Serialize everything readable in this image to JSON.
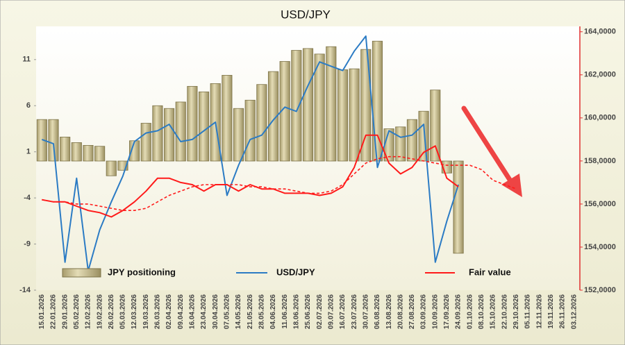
{
  "chart_data": {
    "type": "combo",
    "title": "USD/JPY",
    "categories": [
      "15.01.2026",
      "22.01.2026",
      "29.01.2026",
      "05.02.2026",
      "12.02.2026",
      "19.02.2026",
      "26.02.2026",
      "05.03.2026",
      "12.03.2026",
      "19.03.2026",
      "26.03.2026",
      "02.04.2026",
      "09.04.2026",
      "16.04.2026",
      "23.04.2026",
      "30.04.2026",
      "07.05.2026",
      "14.05.2026",
      "21.05.2026",
      "28.05.2026",
      "04.06.2026",
      "11.06.2026",
      "18.06.2026",
      "25.06.2026",
      "02.07.2026",
      "09.07.2026",
      "16.07.2026",
      "23.07.2026",
      "30.07.2026",
      "06.08.2026",
      "13.08.2026",
      "20.08.2026",
      "27.08.2026",
      "03.09.2026",
      "10.09.2026",
      "17.09.2026",
      "24.09.2026",
      "01.10.2026",
      "08.10.2026",
      "15.10.2026",
      "22.10.2026",
      "29.10.2026",
      "05.11.2026",
      "12.11.2026",
      "19.11.2026",
      "26.11.2026",
      "03.12.2026"
    ],
    "ylim": [
      -14,
      14.6
    ],
    "yticks": [
      -14,
      -9,
      -4,
      1,
      6,
      11
    ],
    "y2lim": [
      152000,
      164250
    ],
    "y2ticks": [
      {
        "value": 152000,
        "label": "152,0000"
      },
      {
        "value": 154000,
        "label": "154,0000"
      },
      {
        "value": 156000,
        "label": "156,0000"
      },
      {
        "value": 158000,
        "label": "158,0000"
      },
      {
        "value": 160000,
        "label": "160,0000"
      },
      {
        "value": 162000,
        "label": "162,0000"
      },
      {
        "value": 164000,
        "label": "164,0000"
      }
    ],
    "series": [
      {
        "name": "JPY positioning",
        "kind": "bar",
        "axis": "y",
        "color": "#c9bf92",
        "values": [
          4.5,
          4.5,
          2.6,
          2.0,
          1.7,
          1.6,
          -1.6,
          -1.0,
          2.2,
          4.1,
          6.0,
          5.7,
          6.4,
          8.1,
          7.5,
          8.4,
          9.3,
          5.7,
          6.6,
          8.3,
          9.7,
          10.8,
          12.0,
          12.2,
          11.6,
          12.4,
          9.9,
          10.0,
          12.1,
          13.0,
          3.5,
          3.7,
          4.5,
          5.4,
          7.7,
          -1.3,
          -10.0,
          null,
          null,
          null,
          null,
          null,
          null,
          null,
          null,
          null,
          null
        ]
      },
      {
        "name": "USD/JPY",
        "kind": "line",
        "axis": "y2",
        "color": "#2b7bc4",
        "values": [
          159000,
          158800,
          153300,
          157200,
          152900,
          154800,
          156100,
          157300,
          158900,
          159300,
          159400,
          159700,
          158900,
          159000,
          159400,
          159800,
          156400,
          157800,
          159000,
          159200,
          159900,
          160500,
          160300,
          161500,
          162600,
          162400,
          162200,
          163100,
          163800,
          157700,
          159400,
          159100,
          159200,
          159700,
          153300,
          155200,
          156900,
          null,
          null,
          null,
          null,
          null,
          null,
          null,
          null,
          null,
          null
        ]
      },
      {
        "name": "Fair value",
        "kind": "line",
        "axis": "y2",
        "color": "#ff1a1a",
        "values": [
          156200,
          156100,
          156100,
          155900,
          155700,
          155600,
          155400,
          155700,
          156100,
          156600,
          157200,
          157200,
          157000,
          156900,
          156600,
          156900,
          156900,
          156600,
          156900,
          156700,
          156700,
          156500,
          156500,
          156500,
          156400,
          156500,
          156800,
          157700,
          159200,
          159200,
          157900,
          157400,
          157700,
          158400,
          158700,
          157200,
          156800,
          null,
          null,
          null,
          null,
          null,
          null,
          null,
          null,
          null,
          null
        ]
      },
      {
        "kind": "line",
        "dashed": true,
        "axis": "y2",
        "color": "#ff1a1a",
        "values": [
          156200,
          156100,
          156100,
          156000,
          156000,
          155900,
          155800,
          155700,
          155700,
          155800,
          156100,
          156400,
          156600,
          156800,
          156900,
          156900,
          156900,
          156900,
          156800,
          156800,
          156700,
          156700,
          156600,
          156500,
          156500,
          156600,
          156900,
          157400,
          157900,
          158100,
          158200,
          158200,
          158100,
          158000,
          157900,
          157800,
          157800,
          157800,
          157600,
          157100,
          156900,
          156700,
          null,
          null,
          null,
          null,
          null
        ]
      }
    ]
  }
}
